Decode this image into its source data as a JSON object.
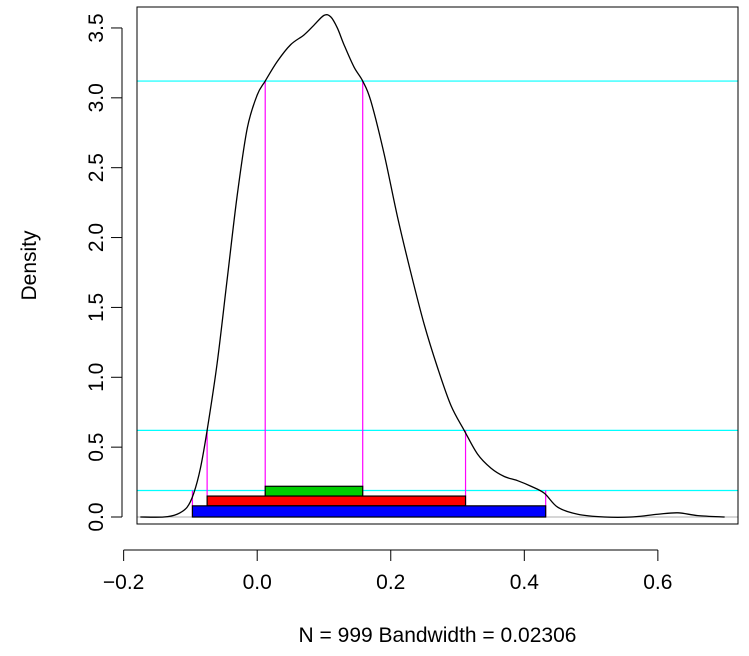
{
  "chart_data": {
    "type": "line",
    "title": "",
    "xlabel": "N = 999   Bandwidth = 0.02306",
    "ylabel": "Density",
    "xlim": [
      -0.18,
      0.72
    ],
    "ylim": [
      -0.05,
      3.65
    ],
    "x_ticks": [
      -0.2,
      0.0,
      0.2,
      0.4,
      0.6
    ],
    "x_tick_labels": [
      "−0.2",
      "0.0",
      "0.2",
      "0.4",
      "0.6"
    ],
    "y_ticks": [
      0.0,
      0.5,
      1.0,
      1.5,
      2.0,
      2.5,
      3.0,
      3.5
    ],
    "y_tick_labels": [
      "0.0",
      "0.5",
      "1.0",
      "1.5",
      "2.0",
      "2.5",
      "3.0",
      "3.5"
    ],
    "grid": false,
    "series": [
      {
        "color": "#000000",
        "x": [
          -0.175,
          -0.14,
          -0.12,
          -0.105,
          -0.095,
          -0.085,
          -0.075,
          -0.06,
          -0.045,
          -0.03,
          -0.015,
          0.0,
          0.012,
          0.03,
          0.05,
          0.07,
          0.085,
          0.1,
          0.11,
          0.12,
          0.13,
          0.145,
          0.158,
          0.17,
          0.19,
          0.21,
          0.23,
          0.25,
          0.27,
          0.29,
          0.31,
          0.33,
          0.35,
          0.37,
          0.39,
          0.41,
          0.43,
          0.45,
          0.48,
          0.52,
          0.56,
          0.6,
          0.63,
          0.66,
          0.7
        ],
        "y": [
          0.0,
          0.0,
          0.02,
          0.07,
          0.17,
          0.35,
          0.62,
          1.1,
          1.7,
          2.3,
          2.78,
          3.02,
          3.12,
          3.26,
          3.38,
          3.45,
          3.52,
          3.59,
          3.58,
          3.5,
          3.38,
          3.22,
          3.12,
          2.98,
          2.6,
          2.15,
          1.75,
          1.38,
          1.07,
          0.8,
          0.62,
          0.45,
          0.35,
          0.29,
          0.26,
          0.22,
          0.17,
          0.07,
          0.02,
          0.0,
          0.0,
          0.02,
          0.03,
          0.01,
          0.0
        ]
      }
    ],
    "hlines": [
      {
        "y": 3.12,
        "color": "#00ffff"
      },
      {
        "y": 0.62,
        "color": "#00ffff"
      },
      {
        "y": 0.19,
        "color": "#00ffff"
      },
      {
        "y": 0.0,
        "color": "#bebebe"
      }
    ],
    "vlines": [
      {
        "x": 0.012,
        "y": 3.12,
        "color": "#ff00ff"
      },
      {
        "x": 0.158,
        "y": 3.12,
        "color": "#ff00ff"
      },
      {
        "x": -0.075,
        "y": 0.62,
        "color": "#ff00ff"
      },
      {
        "x": 0.312,
        "y": 0.62,
        "color": "#ff00ff"
      },
      {
        "x": -0.097,
        "y": 0.19,
        "color": "#ff00ff"
      },
      {
        "x": 0.432,
        "y": 0.19,
        "color": "#ff00ff"
      }
    ],
    "intervals": [
      {
        "x0": 0.012,
        "x1": 0.158,
        "y0": 0.15,
        "y1": 0.22,
        "color": "#00cd00"
      },
      {
        "x0": -0.075,
        "x1": 0.312,
        "y0": 0.08,
        "y1": 0.15,
        "color": "#ff0000"
      },
      {
        "x0": -0.097,
        "x1": 0.432,
        "y0": 0.0,
        "y1": 0.08,
        "color": "#0000ff"
      }
    ]
  }
}
